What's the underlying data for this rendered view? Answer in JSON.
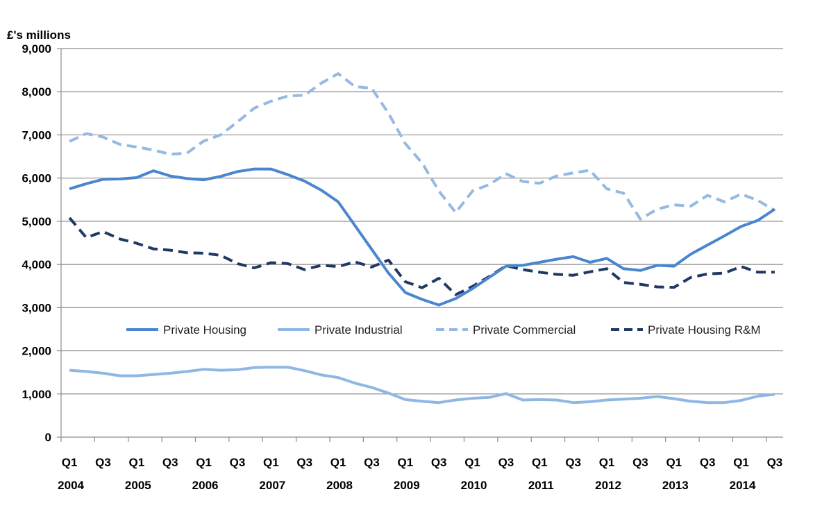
{
  "chart_data": {
    "type": "line",
    "ylabel": "£'s millions",
    "ylim": [
      0,
      9000
    ],
    "yticks": [
      "0",
      "1,000",
      "2,000",
      "3,000",
      "4,000",
      "5,000",
      "6,000",
      "7,000",
      "8,000",
      "9,000"
    ],
    "grid": "horizontal",
    "legend_position": "lower-middle",
    "x_quarter_labels": [
      "Q1",
      "Q3"
    ],
    "x_years": [
      "2004",
      "2005",
      "2006",
      "2007",
      "2008",
      "2009",
      "2010",
      "2011",
      "2012",
      "2013",
      "2014"
    ],
    "x": [
      "2004 Q1",
      "2004 Q2",
      "2004 Q3",
      "2004 Q4",
      "2005 Q1",
      "2005 Q2",
      "2005 Q3",
      "2005 Q4",
      "2006 Q1",
      "2006 Q2",
      "2006 Q3",
      "2006 Q4",
      "2007 Q1",
      "2007 Q2",
      "2007 Q3",
      "2007 Q4",
      "2008 Q1",
      "2008 Q2",
      "2008 Q3",
      "2008 Q4",
      "2009 Q1",
      "2009 Q2",
      "2009 Q3",
      "2009 Q4",
      "2010 Q1",
      "2010 Q2",
      "2010 Q3",
      "2010 Q4",
      "2011 Q1",
      "2011 Q2",
      "2011 Q3",
      "2011 Q4",
      "2012 Q1",
      "2012 Q2",
      "2012 Q3",
      "2012 Q4",
      "2013 Q1",
      "2013 Q2",
      "2013 Q3",
      "2013 Q4",
      "2014 Q1",
      "2014 Q2",
      "2014 Q3"
    ],
    "series": [
      {
        "name": "Private Housing",
        "color": "#4a86cf",
        "dash": "solid",
        "values": [
          5750,
          5870,
          5970,
          5980,
          6010,
          6170,
          6050,
          5990,
          5960,
          6040,
          6150,
          6210,
          6210,
          6080,
          5930,
          5720,
          5450,
          4900,
          4350,
          3800,
          3350,
          3190,
          3060,
          3210,
          3440,
          3700,
          3960,
          3980,
          4050,
          4120,
          4180,
          4050,
          4140,
          3900,
          3860,
          3980,
          3960,
          4240,
          4450,
          4660,
          4880,
          5020,
          5280
        ]
      },
      {
        "name": "Private Industrial",
        "color": "#8fb7e4",
        "dash": "solid",
        "values": [
          1550,
          1520,
          1480,
          1420,
          1420,
          1450,
          1480,
          1520,
          1570,
          1550,
          1560,
          1610,
          1620,
          1620,
          1540,
          1440,
          1380,
          1250,
          1150,
          1020,
          870,
          830,
          800,
          860,
          900,
          920,
          1010,
          860,
          870,
          860,
          800,
          820,
          860,
          880,
          900,
          940,
          890,
          830,
          800,
          800,
          850,
          950,
          990
        ]
      },
      {
        "name": "Private Commercial",
        "color": "#95b9e2",
        "dash": "dashed",
        "values": [
          6850,
          7030,
          6950,
          6780,
          6720,
          6650,
          6550,
          6580,
          6860,
          7000,
          7300,
          7620,
          7780,
          7900,
          7920,
          8200,
          8420,
          8120,
          8080,
          7500,
          6800,
          6350,
          5700,
          5200,
          5700,
          5850,
          6100,
          5920,
          5880,
          6050,
          6120,
          6180,
          5750,
          5650,
          5050,
          5280,
          5380,
          5350,
          5600,
          5450,
          5630,
          5480,
          5250
        ]
      },
      {
        "name": "Private Housing R&M",
        "color": "#1f3864",
        "dash": "dashed",
        "values": [
          5080,
          4620,
          4760,
          4590,
          4490,
          4360,
          4330,
          4270,
          4260,
          4210,
          4020,
          3920,
          4040,
          4020,
          3880,
          3980,
          3950,
          4060,
          3940,
          4100,
          3600,
          3460,
          3680,
          3300,
          3490,
          3720,
          3970,
          3880,
          3820,
          3770,
          3750,
          3830,
          3900,
          3580,
          3540,
          3480,
          3470,
          3700,
          3780,
          3800,
          3950,
          3820,
          3820
        ]
      }
    ]
  }
}
